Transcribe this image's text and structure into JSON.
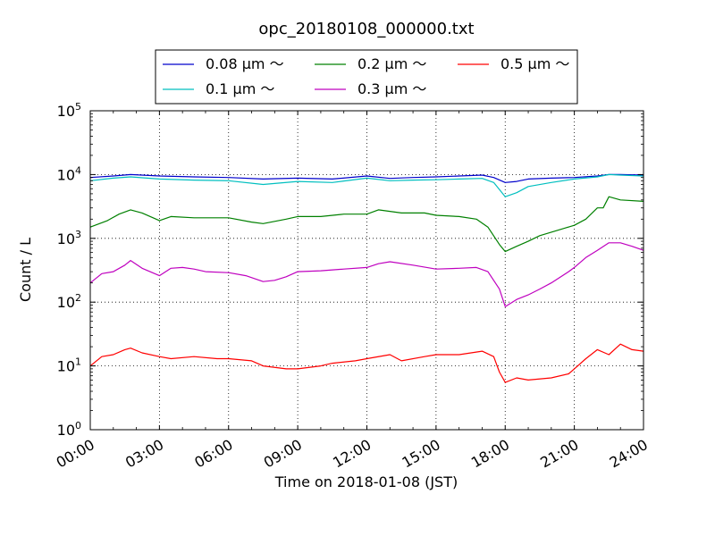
{
  "chart_data": {
    "type": "line",
    "title": "opc_20180108_000000.txt",
    "xlabel": "Time on 2018-01-08 (JST)",
    "ylabel": "Count / L",
    "y_scale": "log",
    "ylim": [
      1,
      100000
    ],
    "xlim": [
      "00:00",
      "24:00"
    ],
    "grid": true,
    "legend_position": "top-center",
    "x_ticks": [
      "00:00",
      "03:00",
      "06:00",
      "09:00",
      "12:00",
      "15:00",
      "18:00",
      "21:00",
      "24:00"
    ],
    "y_ticks": [
      {
        "base": "10",
        "exp": "0"
      },
      {
        "base": "10",
        "exp": "1"
      },
      {
        "base": "10",
        "exp": "2"
      },
      {
        "base": "10",
        "exp": "3"
      },
      {
        "base": "10",
        "exp": "4"
      },
      {
        "base": "10",
        "exp": "5"
      }
    ],
    "series": [
      {
        "name": "0.08 μm ～",
        "color": "#0000cc",
        "x": [
          "00:00",
          "01:00",
          "01:45",
          "03:00",
          "04:30",
          "06:00",
          "07:30",
          "09:00",
          "10:30",
          "12:00",
          "13:00",
          "14:00",
          "15:00",
          "16:00",
          "17:00",
          "17:30",
          "18:00",
          "18:30",
          "19:00",
          "20:00",
          "21:00",
          "22:00",
          "22:30",
          "23:00",
          "24:00"
        ],
        "y": [
          9000,
          9500,
          10000,
          9500,
          9200,
          9000,
          8500,
          8800,
          8500,
          9500,
          8700,
          9000,
          9200,
          9500,
          9800,
          9000,
          7500,
          7800,
          8500,
          8800,
          9000,
          9500,
          10000,
          10000,
          9800
        ]
      },
      {
        "name": "0.1 μm ～",
        "color": "#00bfbf",
        "x": [
          "00:00",
          "01:00",
          "01:45",
          "03:00",
          "04:30",
          "06:00",
          "07:30",
          "09:00",
          "10:30",
          "12:00",
          "13:00",
          "14:00",
          "15:00",
          "16:00",
          "17:00",
          "17:30",
          "18:00",
          "18:30",
          "19:00",
          "20:00",
          "21:00",
          "22:00",
          "22:30",
          "23:00",
          "24:00"
        ],
        "y": [
          8000,
          8800,
          9200,
          8500,
          8200,
          8000,
          7000,
          7800,
          7500,
          8800,
          8000,
          8200,
          8300,
          8500,
          8700,
          7500,
          4500,
          5200,
          6500,
          7500,
          8500,
          9200,
          10000,
          9800,
          9500
        ]
      },
      {
        "name": "0.2 μm ～",
        "color": "#008000",
        "x": [
          "00:00",
          "00:45",
          "01:15",
          "01:45",
          "02:15",
          "03:00",
          "03:30",
          "04:30",
          "06:00",
          "07:00",
          "07:30",
          "08:30",
          "09:00",
          "10:00",
          "11:00",
          "12:00",
          "12:30",
          "13:30",
          "14:30",
          "15:00",
          "16:00",
          "16:45",
          "17:15",
          "17:45",
          "18:00",
          "18:30",
          "19:00",
          "19:30",
          "20:00",
          "21:00",
          "21:30",
          "22:00",
          "22:15",
          "22:30",
          "23:00",
          "24:00"
        ],
        "y": [
          1500,
          1900,
          2400,
          2800,
          2500,
          1900,
          2200,
          2100,
          2100,
          1800,
          1700,
          2000,
          2200,
          2200,
          2400,
          2400,
          2800,
          2500,
          2500,
          2300,
          2200,
          2000,
          1500,
          800,
          620,
          750,
          900,
          1100,
          1250,
          1600,
          2000,
          3000,
          3000,
          4500,
          4000,
          3800
        ]
      },
      {
        "name": "0.3 μm ～",
        "color": "#bf00bf",
        "x": [
          "00:00",
          "00:30",
          "01:00",
          "01:30",
          "01:45",
          "02:15",
          "03:00",
          "03:30",
          "04:00",
          "04:30",
          "05:00",
          "06:00",
          "06:45",
          "07:30",
          "08:00",
          "08:30",
          "09:00",
          "10:00",
          "11:00",
          "12:00",
          "12:30",
          "13:00",
          "14:00",
          "15:00",
          "16:00",
          "16:45",
          "17:15",
          "17:45",
          "18:00",
          "18:30",
          "19:00",
          "19:30",
          "20:00",
          "20:45",
          "21:00",
          "21:30",
          "22:00",
          "22:30",
          "23:00",
          "23:30",
          "24:00"
        ],
        "y": [
          200,
          280,
          300,
          380,
          450,
          340,
          260,
          340,
          350,
          330,
          300,
          290,
          260,
          210,
          220,
          250,
          300,
          310,
          330,
          350,
          400,
          430,
          380,
          330,
          340,
          350,
          300,
          160,
          85,
          110,
          130,
          160,
          200,
          300,
          350,
          500,
          650,
          850,
          850,
          750,
          650
        ]
      },
      {
        "name": "0.5 μm ～",
        "color": "#ff0000",
        "x": [
          "00:00",
          "00:30",
          "01:00",
          "01:30",
          "01:45",
          "02:15",
          "03:00",
          "03:30",
          "04:30",
          "05:30",
          "06:00",
          "07:00",
          "07:30",
          "08:30",
          "09:00",
          "10:00",
          "10:30",
          "11:30",
          "12:00",
          "13:00",
          "13:30",
          "14:30",
          "15:00",
          "16:00",
          "17:00",
          "17:30",
          "17:45",
          "18:00",
          "18:30",
          "19:00",
          "20:00",
          "20:45",
          "21:00",
          "21:30",
          "22:00",
          "22:30",
          "23:00",
          "23:30",
          "24:00"
        ],
        "y": [
          10,
          14,
          15,
          18,
          19,
          16,
          14,
          13,
          14,
          13,
          13,
          12,
          10,
          9,
          9,
          10,
          11,
          12,
          13,
          15,
          12,
          14,
          15,
          15,
          17,
          14,
          8,
          5.5,
          6.5,
          6,
          6.5,
          7.5,
          9,
          13,
          18,
          15,
          22,
          18,
          17
        ]
      }
    ]
  }
}
